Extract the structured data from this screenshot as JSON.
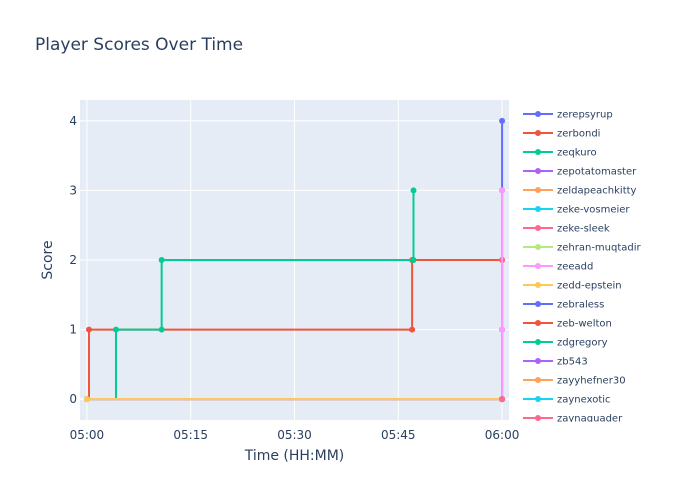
{
  "chart_data": {
    "type": "line",
    "title": "Player Scores Over Time",
    "xlabel": "Time (HH:MM)",
    "ylabel": "Score",
    "x_ticks": [
      "05:00",
      "05:15",
      "05:30",
      "05:45",
      "06:00"
    ],
    "x_tick_minutes": [
      0,
      15,
      30,
      45,
      60
    ],
    "xlim_minutes": [
      -1,
      61
    ],
    "y_ticks": [
      0,
      1,
      2,
      3,
      4
    ],
    "ylim": [
      -0.3,
      4.3
    ],
    "grid": true,
    "legend_position": "right",
    "line_shape": "step",
    "series": [
      {
        "name": "zerepsyrup",
        "color": "#636efa",
        "points": [
          [
            0,
            0
          ],
          [
            60,
            0
          ],
          [
            60,
            1
          ],
          [
            60,
            3
          ],
          [
            60,
            4
          ]
        ]
      },
      {
        "name": "zerbondi",
        "color": "#EF553B",
        "points": [
          [
            0,
            0
          ],
          [
            0.3,
            1
          ],
          [
            47,
            1
          ],
          [
            47,
            2
          ],
          [
            60,
            2
          ]
        ]
      },
      {
        "name": "zeqkuro",
        "color": "#00cc96",
        "points": [
          [
            0,
            0
          ],
          [
            4.2,
            1
          ],
          [
            10.8,
            1
          ],
          [
            10.8,
            2
          ],
          [
            47.2,
            2
          ],
          [
            47.2,
            3
          ]
        ]
      },
      {
        "name": "zepotatomaster",
        "color": "#ab63fa",
        "points": [
          [
            0,
            0
          ],
          [
            60,
            0
          ]
        ]
      },
      {
        "name": "zeldapeachkitty",
        "color": "#FFA15A",
        "points": [
          [
            0,
            0
          ],
          [
            60,
            0
          ]
        ]
      },
      {
        "name": "zeke-vosmeier",
        "color": "#19d3f3",
        "points": [
          [
            0,
            0
          ],
          [
            60,
            0
          ]
        ]
      },
      {
        "name": "zeke-sleek",
        "color": "#FF6692",
        "points": [
          [
            0,
            0
          ],
          [
            60,
            0
          ],
          [
            60,
            2
          ]
        ]
      },
      {
        "name": "zehran-muqtadir",
        "color": "#B6E880",
        "points": [
          [
            0,
            0
          ],
          [
            60,
            0
          ]
        ]
      },
      {
        "name": "zeeadd",
        "color": "#FF97FF",
        "points": [
          [
            0,
            0
          ],
          [
            60,
            0
          ],
          [
            60,
            1
          ],
          [
            60,
            3
          ]
        ]
      },
      {
        "name": "zedd-epstein",
        "color": "#FECB52",
        "points": [
          [
            0,
            0
          ],
          [
            60,
            0
          ]
        ]
      },
      {
        "name": "zebraless",
        "color": "#636efa",
        "points": [
          [
            60,
            0
          ]
        ]
      },
      {
        "name": "zeb-welton",
        "color": "#EF553B",
        "points": [
          [
            60,
            0
          ]
        ]
      },
      {
        "name": "zdgregory",
        "color": "#00cc96",
        "points": [
          [
            60,
            0
          ]
        ]
      },
      {
        "name": "zb543",
        "color": "#ab63fa",
        "points": [
          [
            60,
            0
          ]
        ]
      },
      {
        "name": "zayyhefner30",
        "color": "#FFA15A",
        "points": [
          [
            60,
            0
          ]
        ]
      },
      {
        "name": "zaynexotic",
        "color": "#19d3f3",
        "points": [
          [
            60,
            0
          ]
        ]
      },
      {
        "name": "zaynaquader",
        "color": "#FF6692",
        "points": [
          [
            60,
            0
          ]
        ]
      }
    ]
  }
}
